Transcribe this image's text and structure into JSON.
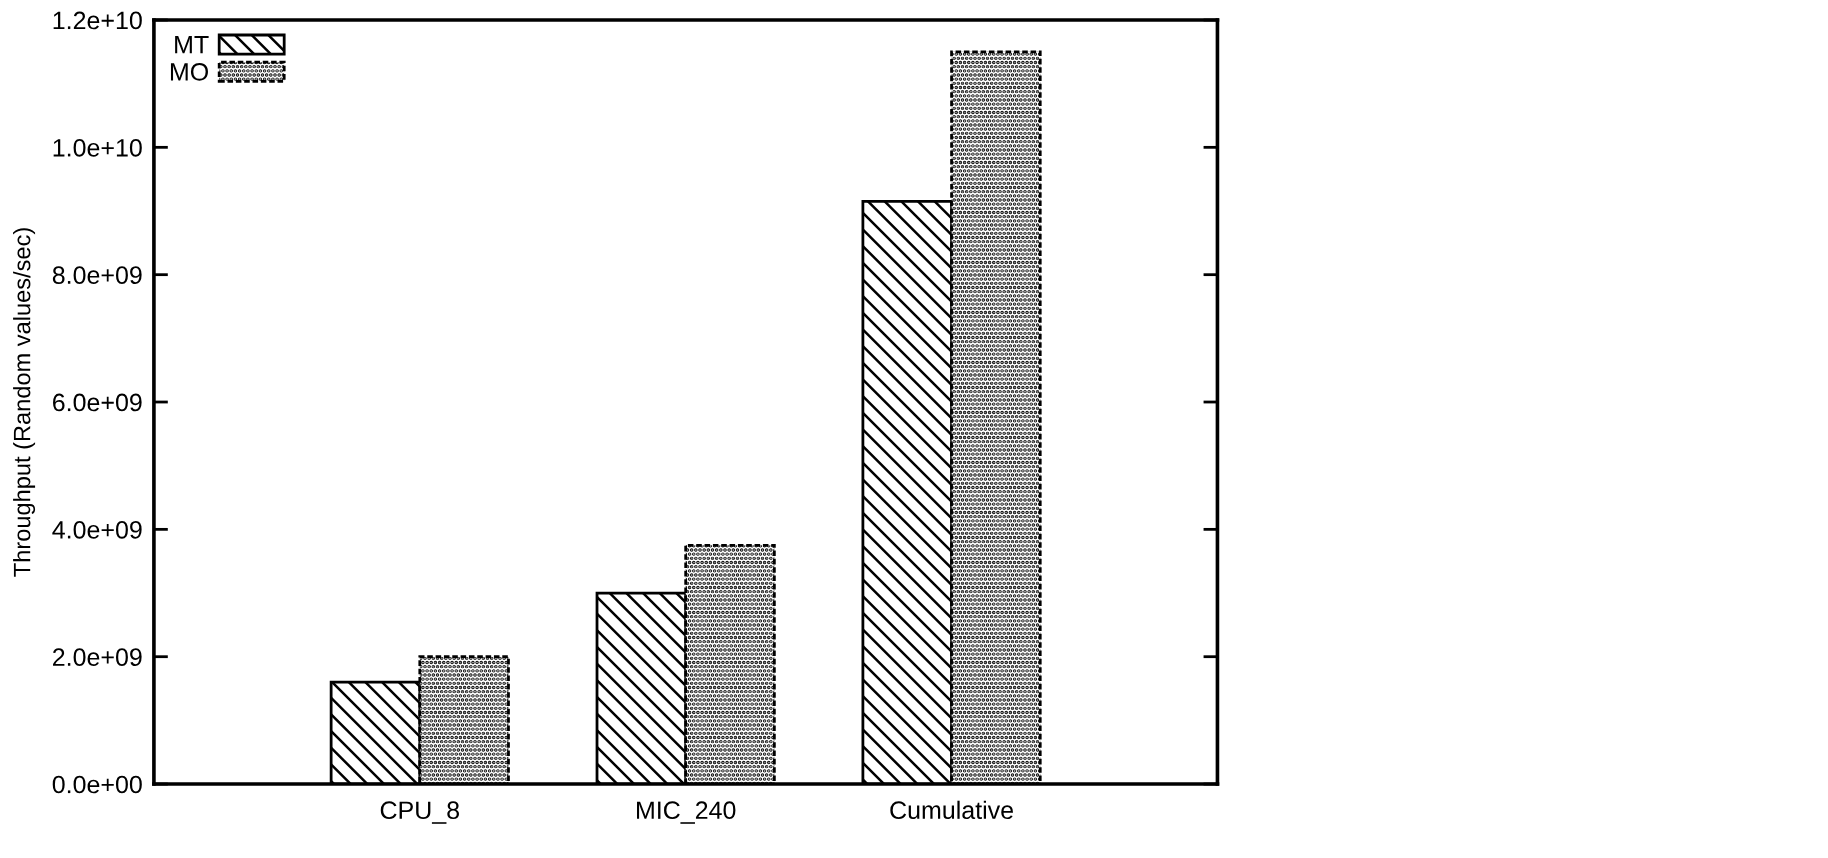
{
  "chart_data": {
    "type": "bar",
    "ylabel": "Throughput (Random values/sec)",
    "categories": [
      "CPU_8",
      "MIC_240",
      "Cumulative"
    ],
    "series": [
      {
        "name": "MT",
        "color": "#000000",
        "values": [
          1600000000.0,
          3000000000.0,
          9150000000.0
        ]
      },
      {
        "name": "MO",
        "color": "#000000",
        "values": [
          2000000000.0,
          3750000000.0,
          11500000000.0
        ]
      }
    ],
    "ylim": [
      0,
      12000000000.0
    ],
    "yticks": [
      {
        "value": 0,
        "label": "0.0e+00"
      },
      {
        "value": 2000000000.0,
        "label": "2.0e+09"
      },
      {
        "value": 4000000000.0,
        "label": "4.0e+09"
      },
      {
        "value": 6000000000.0,
        "label": "6.0e+09"
      },
      {
        "value": 8000000000.0,
        "label": "8.0e+09"
      },
      {
        "value": 10000000000.0,
        "label": "1.0e+10"
      },
      {
        "value": 12000000000.0,
        "label": "1.2e+10"
      }
    ],
    "legend": "top left"
  }
}
